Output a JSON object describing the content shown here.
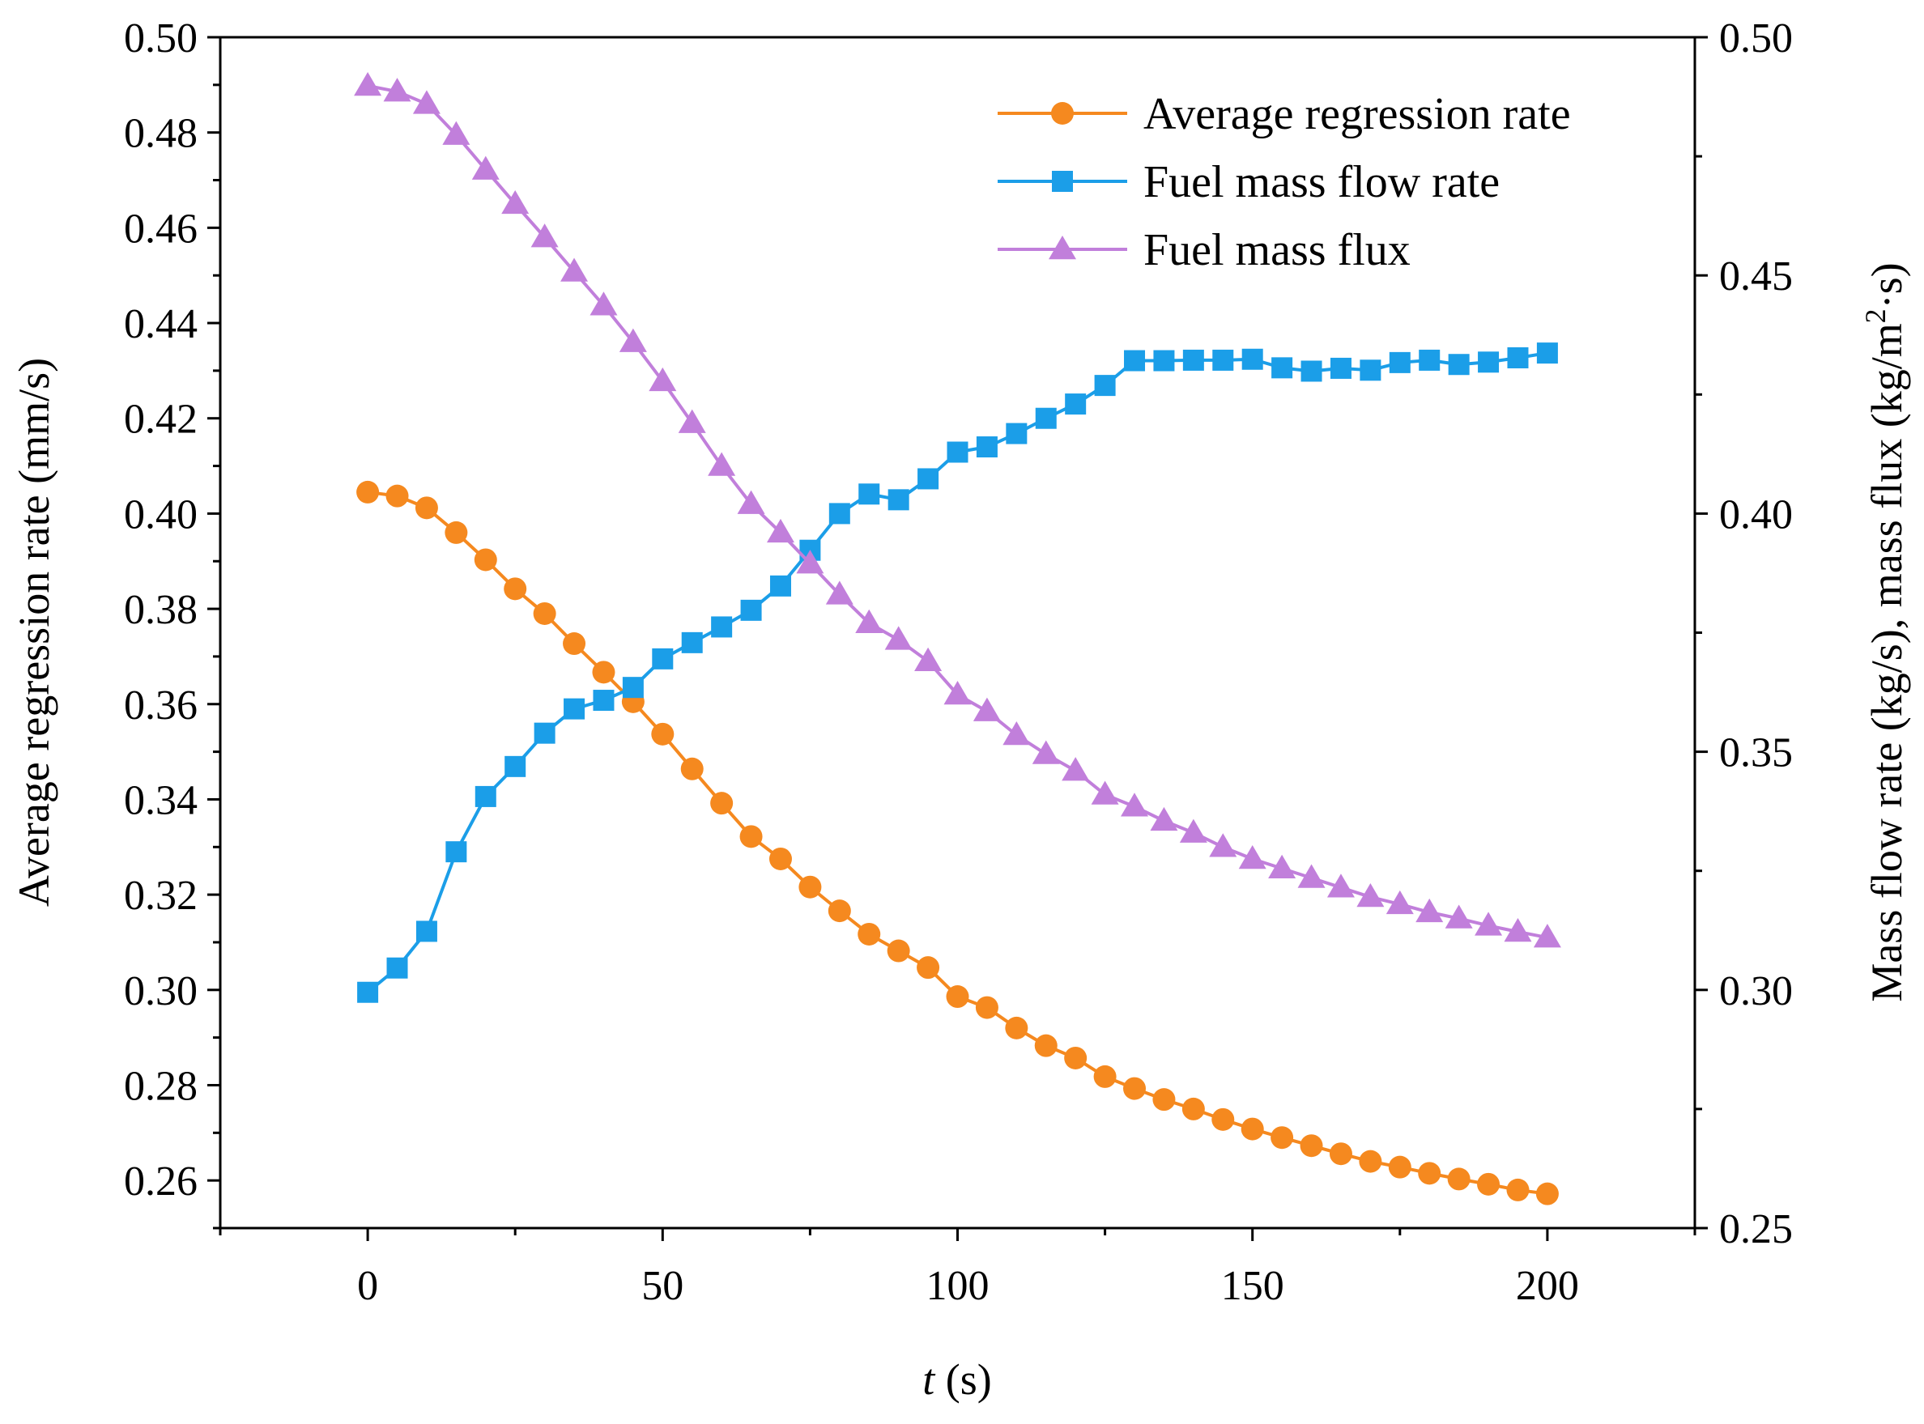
{
  "chart_data": {
    "type": "line",
    "x_axis": {
      "label_italic": "t",
      "label_rest": " (s)",
      "lim": [
        -25,
        225
      ],
      "major_ticks": [
        0,
        50,
        100,
        150,
        200
      ],
      "minor_ticks": [
        -25,
        25,
        75,
        125,
        175,
        225
      ]
    },
    "y_left": {
      "label": "Average regression rate (mm/s)",
      "lim": [
        0.25,
        0.5
      ],
      "major_ticks": [
        "0.26",
        "0.28",
        "0.30",
        "0.32",
        "0.34",
        "0.36",
        "0.38",
        "0.40",
        "0.42",
        "0.44",
        "0.46",
        "0.48",
        "0.50"
      ]
    },
    "y_right": {
      "label_prefix": "Mass flow rate (kg/s), mass flux (kg/m",
      "label_sup": "2",
      "label_suffix": "·s)",
      "lim": [
        0.25,
        0.5
      ],
      "major_ticks": [
        "0.25",
        "0.30",
        "0.35",
        "0.40",
        "0.45",
        "0.50"
      ]
    },
    "x": [
      0,
      5,
      10,
      15,
      20,
      25,
      30,
      35,
      40,
      45,
      50,
      55,
      60,
      65,
      70,
      75,
      80,
      85,
      90,
      95,
      100,
      105,
      110,
      115,
      120,
      125,
      130,
      135,
      140,
      145,
      150,
      155,
      160,
      165,
      170,
      175,
      180,
      185,
      190,
      195,
      200
    ],
    "series": [
      {
        "name": "Average regression rate",
        "axis": "left",
        "marker": "circle",
        "color": "#F5891F",
        "values": [
          0.4045,
          0.4037,
          0.4012,
          0.396,
          0.3903,
          0.3842,
          0.379,
          0.3727,
          0.3667,
          0.3605,
          0.3537,
          0.3464,
          0.3392,
          0.3322,
          0.3275,
          0.3216,
          0.3166,
          0.3117,
          0.3082,
          0.3047,
          0.2986,
          0.2963,
          0.292,
          0.2883,
          0.2857,
          0.2818,
          0.2793,
          0.277,
          0.275,
          0.2728,
          0.2708,
          0.269,
          0.2673,
          0.2656,
          0.264,
          0.2628,
          0.2615,
          0.2603,
          0.2592,
          0.258,
          0.2572
        ]
      },
      {
        "name": "Fuel mass flow rate",
        "axis": "right",
        "marker": "square",
        "color": "#1B9EE8",
        "values": [
          0.2995,
          0.3046,
          0.3123,
          0.329,
          0.3406,
          0.3469,
          0.3539,
          0.359,
          0.3608,
          0.3635,
          0.3695,
          0.3729,
          0.3762,
          0.3797,
          0.3848,
          0.3923,
          0.4,
          0.4041,
          0.4029,
          0.4073,
          0.4129,
          0.414,
          0.4168,
          0.42,
          0.423,
          0.4269,
          0.4321,
          0.4321,
          0.4322,
          0.4322,
          0.4324,
          0.4306,
          0.4299,
          0.4305,
          0.4301,
          0.4317,
          0.4322,
          0.4313,
          0.4318,
          0.4327,
          0.4337
        ]
      },
      {
        "name": "Fuel mass flux",
        "axis": "right",
        "marker": "triangle",
        "color": "#C17FDB",
        "values": [
          0.4898,
          0.4886,
          0.486,
          0.4795,
          0.4722,
          0.465,
          0.458,
          0.4508,
          0.4437,
          0.436,
          0.4278,
          0.419,
          0.41,
          0.402,
          0.396,
          0.3895,
          0.383,
          0.377,
          0.3735,
          0.369,
          0.362,
          0.3585,
          0.3535,
          0.3495,
          0.346,
          0.341,
          0.3385,
          0.3355,
          0.333,
          0.33,
          0.3275,
          0.3255,
          0.3235,
          0.3215,
          0.3195,
          0.318,
          0.3163,
          0.315,
          0.3135,
          0.3122,
          0.311
        ]
      }
    ],
    "legend_position": "top-right"
  }
}
